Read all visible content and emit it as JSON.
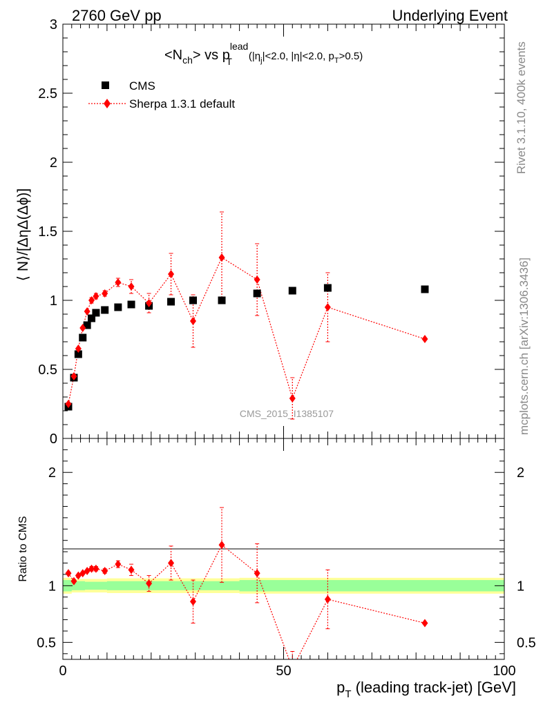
{
  "header": {
    "left": "2760 GeV pp",
    "right": "Underlying Event"
  },
  "side_labels": {
    "rivet": "Rivet 3.1.10,  400k events",
    "mcplots": "mcplots.cern.ch [arXiv:1306.3436]"
  },
  "watermark": "CMS_2015_I1385107",
  "colors": {
    "data": "#000000",
    "mc": "#ff0000",
    "band_inner": "#99ff99",
    "band_outer": "#ffff99"
  },
  "chart_data": [
    {
      "type": "scatter",
      "title": {
        "a": "<N",
        "a_sub": "ch",
        "b": "> vs p",
        "b_sub": "T",
        "b_sup": "lead",
        "c": "(|η",
        "c_sub": "j",
        "d": "|<2.0, |η|<2.0, p",
        "d_sub": "T",
        "e": ">0.5)"
      },
      "ylabel": "⟨ N⟩/[ΔηΔ(Δϕ)]",
      "xlim": [
        0,
        100
      ],
      "ylim": [
        0,
        3
      ],
      "yticks": [
        0,
        0.5,
        1,
        1.5,
        2,
        2.5,
        3
      ],
      "ytick_labels": [
        "0",
        "0.5",
        "1",
        "1.5",
        "2",
        "2.5",
        "3"
      ],
      "legend": {
        "position": "top-left"
      },
      "series": [
        {
          "name": "CMS",
          "marker": "square",
          "x": [
            1.25,
            2.5,
            3.5,
            4.5,
            5.5,
            6.5,
            7.5,
            9.5,
            12.5,
            15.5,
            19.5,
            24.5,
            29.5,
            36,
            44,
            52,
            60,
            82
          ],
          "y": [
            0.23,
            0.44,
            0.61,
            0.73,
            0.82,
            0.87,
            0.91,
            0.93,
            0.95,
            0.97,
            0.96,
            0.99,
            1.0,
            1.0,
            1.05,
            1.07,
            1.09,
            1.08
          ]
        },
        {
          "name": "Sherpa 1.3.1 default",
          "marker": "diamond",
          "x": [
            1.25,
            2.5,
            3.5,
            4.5,
            5.5,
            6.5,
            7.5,
            9.5,
            12.5,
            15.5,
            19.5,
            24.5,
            29.5,
            36,
            44,
            52,
            60,
            82
          ],
          "y": [
            0.25,
            0.45,
            0.65,
            0.8,
            0.92,
            1.0,
            1.03,
            1.05,
            1.13,
            1.1,
            0.98,
            1.19,
            0.85,
            1.31,
            1.15,
            0.29,
            0.95,
            0.72
          ],
          "yerr": [
            0.01,
            0.01,
            0.01,
            0.01,
            0.01,
            0.02,
            0.02,
            0.02,
            0.03,
            0.05,
            0.07,
            0.15,
            0.19,
            0.33,
            0.26,
            0.15,
            0.25,
            0.01
          ]
        }
      ]
    },
    {
      "type": "scatter",
      "ylabel": "Ratio to CMS",
      "xlabel_main": "p",
      "xlabel_sub": "T",
      "xlabel_rest": " (leading track-jet) [GeV]",
      "xlim": [
        0,
        100
      ],
      "ylim": [
        0.35,
        2.3
      ],
      "xticks": [
        0,
        50,
        100
      ],
      "xtick_labels": [
        "0",
        "50",
        "100"
      ],
      "yticks": [
        0.5,
        1,
        2
      ],
      "ytick_labels": [
        "0.5",
        "1",
        "2"
      ],
      "band": {
        "x": [
          0,
          2,
          5,
          10,
          20,
          30,
          40,
          50,
          60,
          100
        ],
        "inner": [
          0.95,
          0.96,
          0.965,
          0.96,
          0.96,
          0.96,
          0.95,
          0.95,
          0.95,
          0.95
        ],
        "inner_hi": [
          1.05,
          1.04,
          1.035,
          1.04,
          1.04,
          1.04,
          1.05,
          1.05,
          1.05,
          1.05
        ],
        "outer": [
          0.93,
          0.94,
          0.94,
          0.935,
          0.935,
          0.935,
          0.93,
          0.93,
          0.93,
          0.93
        ],
        "outer_hi": [
          1.07,
          1.06,
          1.06,
          1.065,
          1.065,
          1.065,
          1.07,
          1.07,
          1.07,
          1.07
        ]
      },
      "series": [
        {
          "name": "Sherpa 1.3.1 default",
          "x": [
            1.25,
            2.5,
            3.5,
            4.5,
            5.5,
            6.5,
            7.5,
            9.5,
            12.5,
            15.5,
            19.5,
            24.5,
            29.5,
            36,
            44,
            52,
            60,
            82
          ],
          "y": [
            1.11,
            1.04,
            1.09,
            1.11,
            1.13,
            1.15,
            1.15,
            1.13,
            1.19,
            1.14,
            1.02,
            1.2,
            0.86,
            1.36,
            1.11,
            0.27,
            0.88,
            0.67
          ],
          "yerr": [
            0.01,
            0.01,
            0.01,
            0.01,
            0.01,
            0.02,
            0.02,
            0.02,
            0.03,
            0.05,
            0.07,
            0.15,
            0.19,
            0.33,
            0.26,
            0.15,
            0.26,
            0.01
          ]
        }
      ]
    }
  ]
}
